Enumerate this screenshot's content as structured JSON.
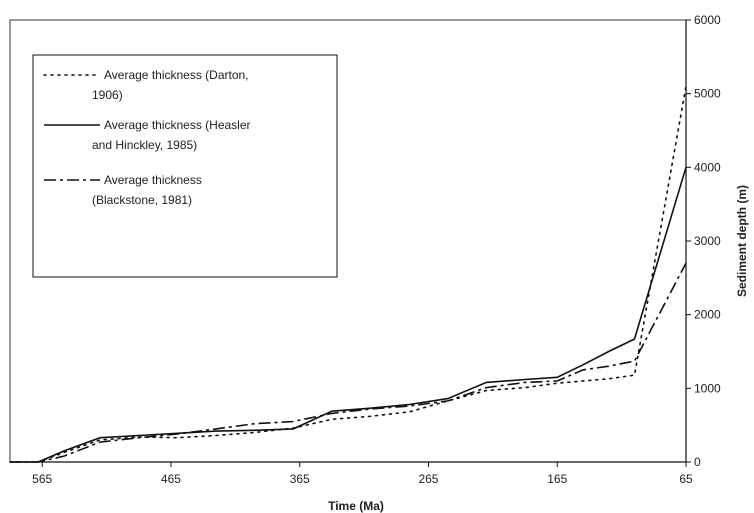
{
  "chart_data": {
    "type": "line",
    "xlabel": "Time (Ma)",
    "ylabel": "Sediment depth (m)",
    "xlim": [
      590,
      65
    ],
    "ylim": [
      0,
      6000
    ],
    "x_ticks": [
      565,
      465,
      365,
      265,
      165,
      65
    ],
    "y_ticks": [
      0,
      1000,
      2000,
      3000,
      4000,
      5000,
      6000
    ],
    "x_tick_labels": [
      "565",
      "465",
      "365",
      "265",
      "165",
      "65"
    ],
    "y_tick_labels": [
      "0",
      "1000",
      "2000",
      "3000",
      "4000",
      "5000",
      "6000"
    ],
    "y_axis_side": "right",
    "legend_position": "top-left",
    "series": [
      {
        "name": "Average thickness (Darton, 1906)",
        "style": "dotted",
        "name_lines": [
          "Average thickness (Darton,",
          "1906)"
        ],
        "x": [
          590,
          568,
          548,
          520,
          490,
          460,
          430,
          400,
          370,
          340,
          310,
          280,
          250,
          220,
          190,
          165,
          145,
          125,
          105,
          65
        ],
        "y": [
          0,
          0,
          130,
          300,
          340,
          330,
          360,
          400,
          460,
          580,
          620,
          680,
          830,
          970,
          1010,
          1070,
          1100,
          1130,
          1180,
          5100
        ]
      },
      {
        "name": "Average thickness (Heasler and Hinckley, 1985)",
        "style": "solid",
        "name_lines": [
          "Average thickness (Heasler",
          "and Hinckley, 1985)"
        ],
        "x": [
          590,
          568,
          548,
          520,
          490,
          460,
          430,
          400,
          370,
          340,
          310,
          280,
          250,
          220,
          190,
          165,
          145,
          125,
          105,
          65
        ],
        "y": [
          0,
          0,
          150,
          330,
          360,
          390,
          420,
          430,
          450,
          690,
          730,
          780,
          860,
          1080,
          1120,
          1150,
          1320,
          1500,
          1670,
          4000
        ]
      },
      {
        "name": "Average thickness (Blackstone, 1981)",
        "style": "dash-dot",
        "name_lines": [
          "Average thickness",
          "(Blackstone, 1981)"
        ],
        "x": [
          590,
          568,
          548,
          520,
          490,
          460,
          430,
          400,
          370,
          340,
          310,
          280,
          250,
          220,
          190,
          165,
          145,
          125,
          105,
          65
        ],
        "y": [
          0,
          0,
          80,
          270,
          330,
          380,
          450,
          520,
          550,
          660,
          720,
          760,
          830,
          1010,
          1080,
          1100,
          1250,
          1300,
          1370,
          2700
        ]
      }
    ]
  },
  "colors": {
    "line": "#111111",
    "background": "#ffffff",
    "frame": "#333333"
  }
}
